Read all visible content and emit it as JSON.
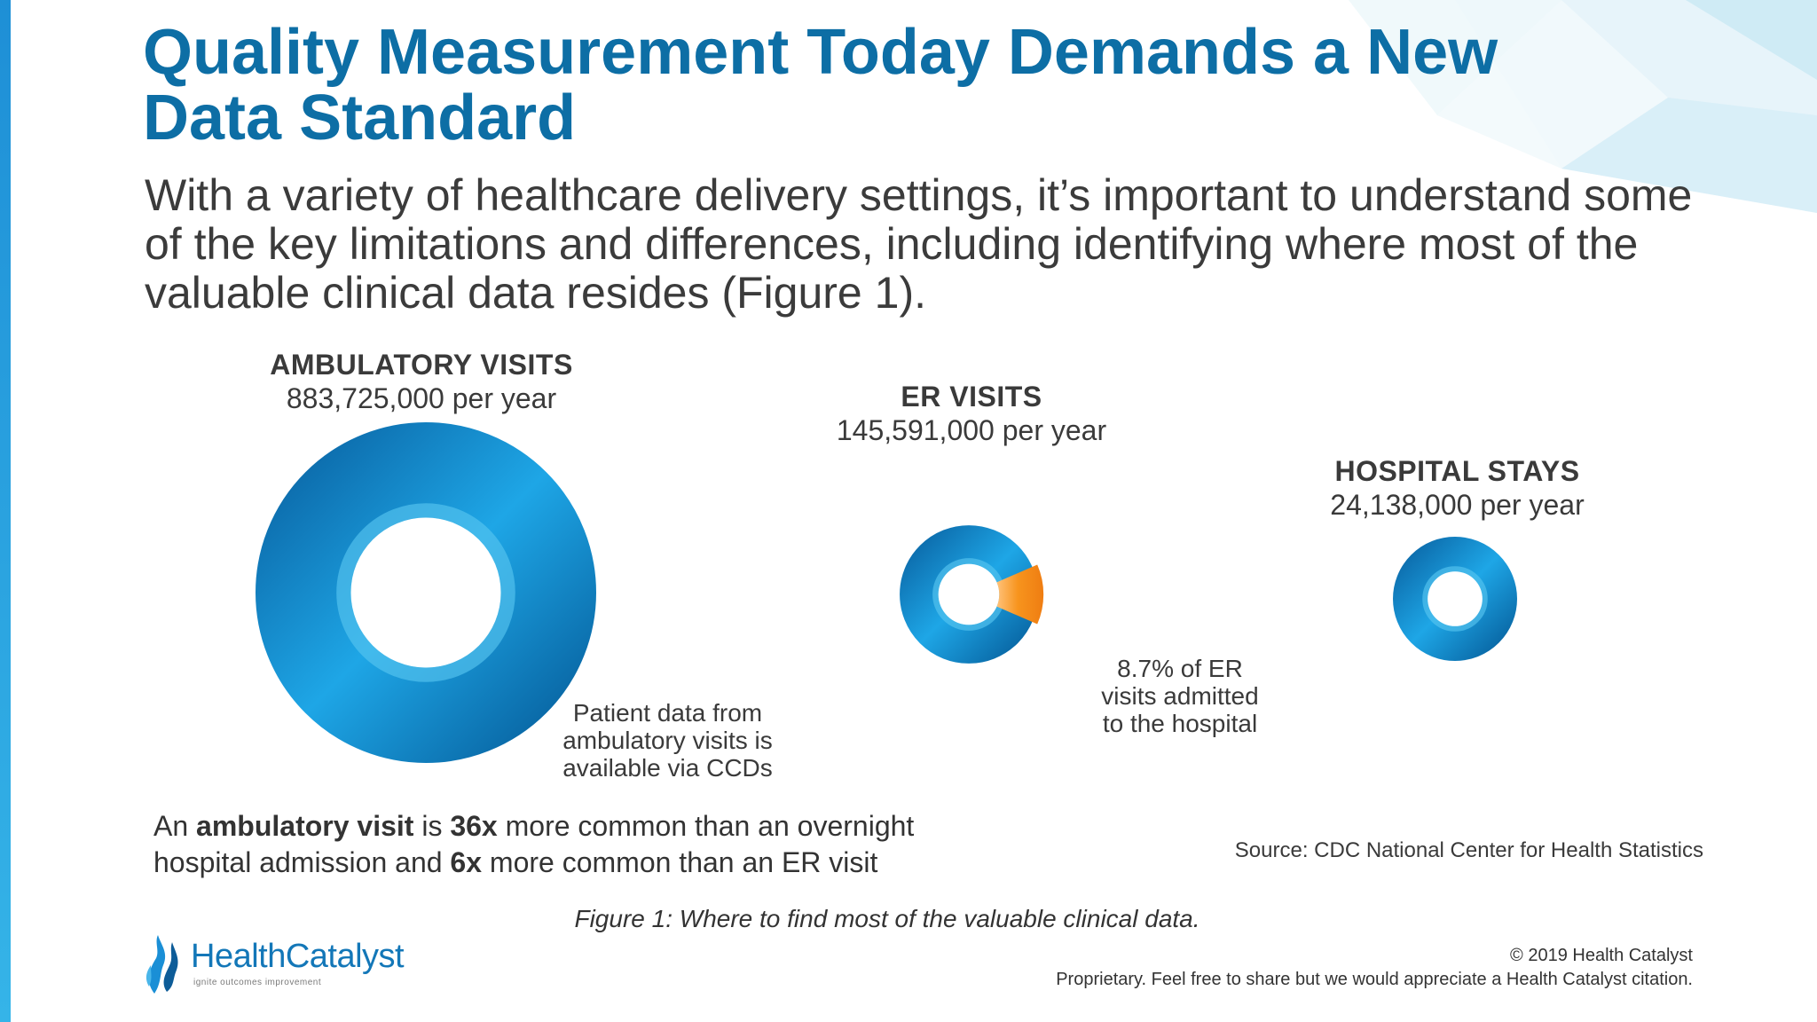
{
  "slide": {
    "title": "Quality Measurement Today Demands a New Data Standard",
    "subtitle": "With a variety of healthcare delivery settings, it’s important to understand some of the key limitations and differences, including identifying where most of the valuable clinical data resides (Figure 1)."
  },
  "colors": {
    "title": "#0d6ea5",
    "ring_dark": "#0a72b8",
    "ring_light": "#2fb2ec",
    "ring_inner": "#56c4f0",
    "highlight": "#f58a1f",
    "left_bar": "#1e8fd6"
  },
  "stats": [
    {
      "label": "AMBULATORY VISITS",
      "value": "883,725,000 per year"
    },
    {
      "label": "ER VISITS",
      "value": "145,591,000 per year"
    },
    {
      "label": "HOSPITAL STAYS",
      "value": "24,138,000 per year"
    }
  ],
  "annotations": {
    "ambulatory": [
      "Patient data from",
      "ambulatory visits is",
      "available via CCDs"
    ],
    "er": [
      "8.7% of ER",
      "visits admitted",
      "to the hospital"
    ]
  },
  "summary": {
    "p1": "An ",
    "b1": "ambulatory visit",
    "p2": " is ",
    "b2": "36x",
    "p3": " more common than an overnight hospital admission and ",
    "b3": "6x",
    "p4": " more common than an ER visit"
  },
  "source": "Source: CDC National Center for Health Statistics",
  "caption": "Figure 1: Where to find most of the valuable clinical data.",
  "logo": {
    "name": "HealthCatalyst",
    "tagline": "ignite outcomes improvement"
  },
  "footer": {
    "copyright": "© 2019 Health Catalyst",
    "notice": "Proprietary. Feel free to share but we would appreciate a Health Catalyst citation."
  },
  "chart_data": {
    "type": "pie",
    "title": "",
    "categories": [
      "AMBULATORY VISITS",
      "ER VISITS",
      "HOSPITAL STAYS"
    ],
    "values": [
      883725000,
      145591000,
      24138000
    ],
    "unit": "per year",
    "highlight": {
      "category": "ER VISITS",
      "percent": 8.7,
      "label": "8.7% of ER visits admitted to the hospital"
    }
  }
}
